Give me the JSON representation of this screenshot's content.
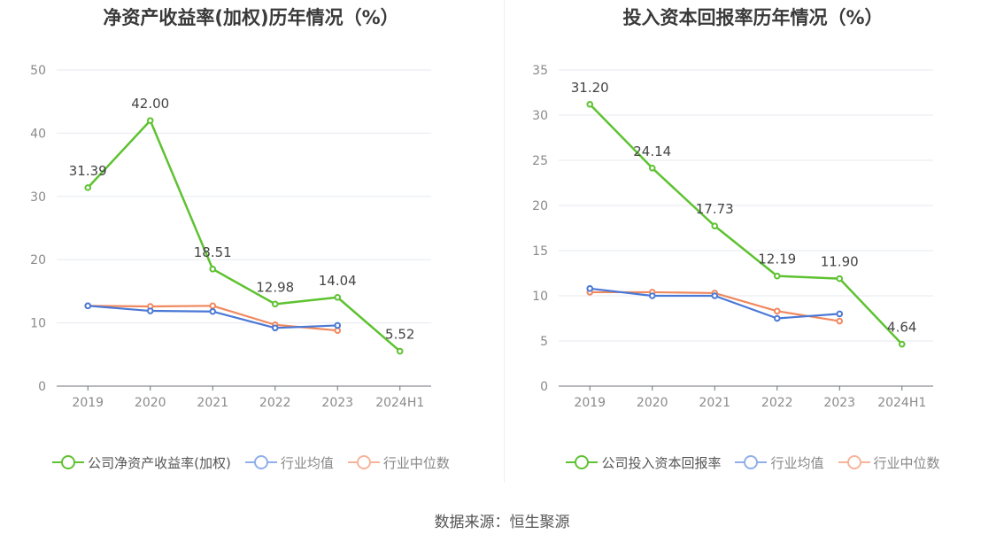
{
  "chart_data": [
    {
      "type": "line",
      "title": "净资产收益率(加权)历年情况（%）",
      "categories": [
        "2019",
        "2020",
        "2021",
        "2022",
        "2023",
        "2024H1"
      ],
      "ylim": [
        0,
        50
      ],
      "yticks": [
        "0",
        "10",
        "20",
        "30",
        "40",
        "50"
      ],
      "grid": true,
      "legend_position": "bottom",
      "series": [
        {
          "name": "公司净资产收益率(加权)",
          "color": "#5ec231",
          "values": [
            31.39,
            42.0,
            18.51,
            12.98,
            14.04,
            5.52
          ],
          "labels": [
            "31.39",
            "42.00",
            "18.51",
            "12.98",
            "14.04",
            "5.52"
          ]
        },
        {
          "name": "行业均值",
          "color": "#4a78d6",
          "values": [
            12.7,
            11.9,
            11.8,
            9.2,
            9.6,
            null
          ]
        },
        {
          "name": "行业中位数",
          "color": "#f0885e",
          "values": [
            12.7,
            12.6,
            12.7,
            9.7,
            8.8,
            null
          ]
        }
      ]
    },
    {
      "type": "line",
      "title": "投入资本回报率历年情况（%）",
      "categories": [
        "2019",
        "2020",
        "2021",
        "2022",
        "2023",
        "2024H1"
      ],
      "ylim": [
        0,
        35
      ],
      "yticks": [
        "0",
        "5",
        "10",
        "15",
        "20",
        "25",
        "30",
        "35"
      ],
      "grid": true,
      "legend_position": "bottom",
      "series": [
        {
          "name": "公司投入资本回报率",
          "color": "#5ec231",
          "values": [
            31.2,
            24.14,
            17.73,
            12.19,
            11.9,
            4.64
          ],
          "labels": [
            "31.20",
            "24.14",
            "17.73",
            "12.19",
            "11.90",
            "4.64"
          ]
        },
        {
          "name": "行业均值",
          "color": "#4a78d6",
          "values": [
            10.8,
            10.0,
            10.0,
            7.5,
            8.0,
            null
          ]
        },
        {
          "name": "行业中位数",
          "color": "#f0885e",
          "values": [
            10.4,
            10.4,
            10.3,
            8.3,
            7.2,
            null
          ]
        }
      ]
    }
  ],
  "legend_colors": {
    "company": "#5ec231",
    "mean": "#8faeea",
    "median": "#f6b49a"
  },
  "footer": "数据来源：恒生聚源"
}
